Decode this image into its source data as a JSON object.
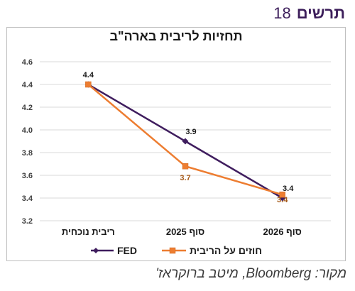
{
  "header": {
    "figure_word": "תרשים",
    "figure_number": "18"
  },
  "source_note": "מקור: Bloomberg, מיטב ברוקראז'",
  "colors": {
    "fed": "#3f1d5e",
    "market": "#ed7d31",
    "grid": "#d9d9d9",
    "axis_text": "#404040"
  },
  "chart_data": {
    "type": "line",
    "title": "תחזיות לריבית בארה\"ב",
    "categories": [
      "ריבית נוכחית",
      "סוף 2025",
      "סוף 2026"
    ],
    "ylim": [
      3.2,
      4.6
    ],
    "yticks": [
      "3.2",
      "3.4",
      "3.6",
      "3.8",
      "4.0",
      "4.2",
      "4.4",
      "4.6"
    ],
    "grid": true,
    "legend_position": "bottom",
    "series": [
      {
        "name": "FED",
        "values": [
          4.4,
          3.9,
          3.4
        ],
        "labels": [
          "4.4",
          "3.9",
          "3.4"
        ],
        "marker": "diamond"
      },
      {
        "name": "חוזים על הריבית",
        "values": [
          4.4,
          3.68,
          3.43
        ],
        "labels": [
          "",
          "3.7",
          "3.4"
        ],
        "marker": "square"
      }
    ]
  }
}
